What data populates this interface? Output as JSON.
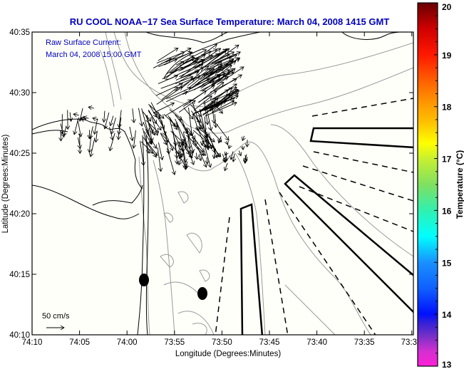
{
  "title": "RU COOL  NOAA−17  Sea Surface Temperature:  March 04, 2008 1415 GMT",
  "annotation": {
    "line1": "Raw Surface Current:",
    "line2": "March 04, 2008 15:00 GMT"
  },
  "scale_label": "50 cm/s",
  "axes": {
    "xlabel": "Longitude (Degrees:Minutes)",
    "ylabel": "Latitude (Degrees:Minutes)",
    "xticks": [
      "74:10",
      "74:05",
      "74:00",
      "73:55",
      "73:50",
      "73:45",
      "73:40",
      "73:35",
      "73:3"
    ],
    "yticks": [
      "40:35",
      "40:30",
      "40:25",
      "40:20",
      "40:15",
      "40:10"
    ]
  },
  "colorbar": {
    "label": "Temperature (°C)",
    "min": 13,
    "max": 20,
    "ticks": [
      "20",
      "19",
      "18",
      "17",
      "16",
      "15",
      "14",
      "13"
    ],
    "stops": [
      {
        "v": 13.0,
        "c": "#ff20d8"
      },
      {
        "v": 13.3,
        "c": "#d030d0"
      },
      {
        "v": 13.6,
        "c": "#7030c8"
      },
      {
        "v": 13.85,
        "c": "#3020d8"
      },
      {
        "v": 14.0,
        "c": "#0010ff"
      },
      {
        "v": 14.5,
        "c": "#1060ff"
      },
      {
        "v": 15.0,
        "c": "#1890ff"
      },
      {
        "v": 15.5,
        "c": "#00ffff"
      },
      {
        "v": 16.0,
        "c": "#30f0b0"
      },
      {
        "v": 16.5,
        "c": "#80e060"
      },
      {
        "v": 17.0,
        "c": "#c8f030"
      },
      {
        "v": 17.3,
        "c": "#ffff00"
      },
      {
        "v": 17.7,
        "c": "#ffc000"
      },
      {
        "v": 18.0,
        "c": "#ffa000"
      },
      {
        "v": 18.5,
        "c": "#ff6000"
      },
      {
        "v": 19.0,
        "c": "#ff1800"
      },
      {
        "v": 19.5,
        "c": "#d00000"
      },
      {
        "v": 20.0,
        "c": "#680000"
      }
    ]
  },
  "colors": {
    "title": "#0000c0",
    "contour": "#999999",
    "land": "#000000"
  }
}
